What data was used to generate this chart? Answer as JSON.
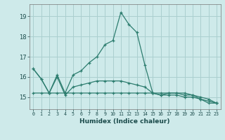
{
  "x": [
    0,
    1,
    2,
    3,
    4,
    5,
    6,
    7,
    8,
    9,
    10,
    11,
    12,
    13,
    14,
    15,
    16,
    17,
    18,
    19,
    20,
    21,
    22,
    23
  ],
  "line1": [
    16.4,
    15.9,
    15.2,
    16.1,
    15.2,
    16.1,
    16.3,
    16.7,
    17.0,
    17.6,
    17.8,
    19.2,
    18.6,
    18.2,
    16.6,
    15.2,
    15.1,
    15.2,
    15.2,
    15.2,
    15.1,
    14.9,
    14.7,
    14.7
  ],
  "line2": [
    16.4,
    15.9,
    15.2,
    16.0,
    15.1,
    15.5,
    15.6,
    15.7,
    15.8,
    15.8,
    15.8,
    15.8,
    15.7,
    15.6,
    15.5,
    15.2,
    15.1,
    15.1,
    15.1,
    15.0,
    15.0,
    14.9,
    14.8,
    14.7
  ],
  "line3": [
    15.2,
    15.2,
    15.2,
    15.2,
    15.2,
    15.2,
    15.2,
    15.2,
    15.2,
    15.2,
    15.2,
    15.2,
    15.2,
    15.2,
    15.2,
    15.2,
    15.2,
    15.2,
    15.2,
    15.1,
    15.1,
    15.0,
    14.9,
    14.7
  ],
  "color": "#2d7d6f",
  "bg_color": "#ceeaea",
  "grid_color": "#aacfcf",
  "xlabel": "Humidex (Indice chaleur)",
  "ylabel_ticks": [
    15,
    16,
    17,
    18,
    19
  ],
  "ylim": [
    14.4,
    19.6
  ],
  "xlim": [
    -0.5,
    23.5
  ]
}
